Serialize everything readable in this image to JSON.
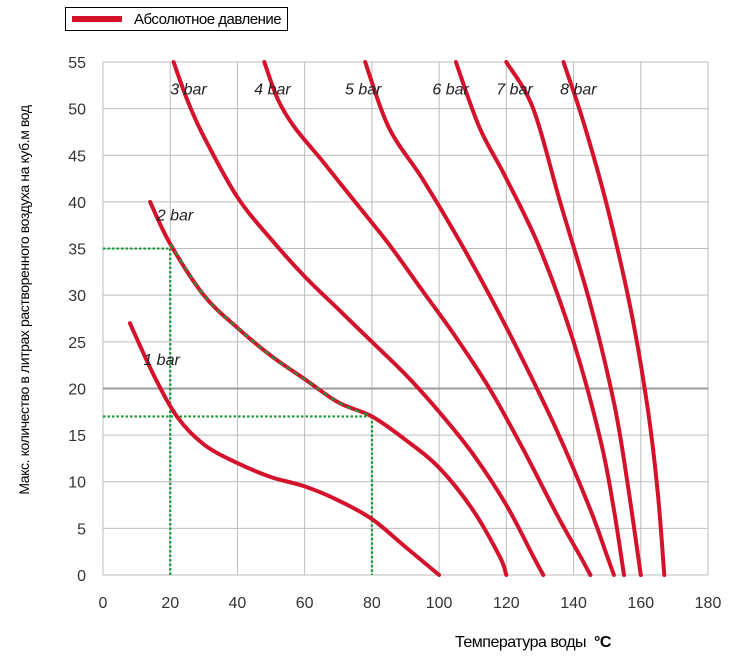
{
  "legend": {
    "label": "Абсолютное  давление",
    "color": "#d5122b"
  },
  "xlabel": {
    "text": "Температура воды",
    "unit": "°C"
  },
  "ylabel": "Макс. количество в литрах растворенного воздуха на куб.м вод",
  "chart_data": {
    "type": "line",
    "xlim": [
      0,
      180
    ],
    "ylim": [
      0,
      55
    ],
    "xticks": [
      "0",
      "20",
      "40",
      "60",
      "80",
      "100",
      "120",
      "140",
      "160",
      "180"
    ],
    "yticks": [
      "0",
      "5",
      "10",
      "15",
      "20",
      "25",
      "30",
      "35",
      "40",
      "45",
      "50",
      "55"
    ],
    "grid": true,
    "highlight_gridline_y": 20,
    "legend_position": "top-left",
    "line_color": "#d5122b",
    "series": [
      {
        "name": "1 bar",
        "x": [
          8,
          15,
          22,
          30,
          40,
          50,
          60,
          70,
          80,
          90,
          100
        ],
        "y": [
          27,
          21.5,
          17,
          14,
          12,
          10.5,
          9.5,
          8,
          6,
          3,
          0
        ]
      },
      {
        "name": "2 bar",
        "x": [
          14,
          20,
          30,
          40,
          50,
          60,
          70,
          80,
          90,
          100,
          110,
          118,
          120
        ],
        "y": [
          40,
          35.5,
          30,
          26.5,
          23.5,
          21,
          18.5,
          17,
          14.5,
          11.5,
          7,
          2,
          0
        ]
      },
      {
        "name": "3 bar",
        "x": [
          21,
          25,
          30,
          40,
          50,
          60,
          70,
          80,
          90,
          100,
          110,
          120,
          128,
          131
        ],
        "y": [
          55,
          51,
          47,
          40.5,
          36,
          32,
          28.5,
          25,
          21.5,
          17.5,
          13,
          7.5,
          2,
          0
        ]
      },
      {
        "name": "4 bar",
        "x": [
          48,
          52,
          57,
          65,
          75,
          85,
          95,
          105,
          115,
          125,
          135,
          142,
          145
        ],
        "y": [
          55,
          51,
          48,
          44.5,
          40,
          35.5,
          30.5,
          25.5,
          20,
          13.5,
          6.5,
          2,
          0
        ]
      },
      {
        "name": "5 bar",
        "x": [
          78,
          85,
          95,
          105,
          115,
          125,
          135,
          145,
          150,
          152
        ],
        "y": [
          55,
          48,
          42.5,
          36.5,
          30,
          23,
          15.5,
          7,
          2,
          0
        ]
      },
      {
        "name": "6 bar",
        "x": [
          105,
          112,
          120,
          130,
          140,
          148,
          152,
          155
        ],
        "y": [
          55,
          48,
          42.5,
          35,
          25,
          14.5,
          7,
          0
        ]
      },
      {
        "name": "7 bar",
        "x": [
          120,
          128,
          136,
          145,
          152,
          156,
          160
        ],
        "y": [
          55,
          50,
          40,
          29,
          18.5,
          10,
          0
        ]
      },
      {
        "name": "8 bar",
        "x": [
          137,
          143,
          150,
          157,
          162,
          165,
          167
        ],
        "y": [
          55,
          48.5,
          39.5,
          28.5,
          18,
          9,
          0
        ]
      }
    ],
    "curve_labels": [
      {
        "text": "1 bar",
        "x": 12,
        "y": 22.5
      },
      {
        "text": "2 bar",
        "x": 16,
        "y": 38
      },
      {
        "text": "3 bar",
        "x": 20,
        "y": 51.5
      },
      {
        "text": "4 bar",
        "x": 45,
        "y": 51.5
      },
      {
        "text": "5 bar",
        "x": 72,
        "y": 51.5
      },
      {
        "text": "6 bar",
        "x": 98,
        "y": 51.5
      },
      {
        "text": "7 bar",
        "x": 117,
        "y": 51.5
      },
      {
        "text": "8 bar",
        "x": 136,
        "y": 51.5
      }
    ],
    "annotations": {
      "color": "#1a9a3a",
      "example_segment": {
        "x": [
          20,
          80
        ],
        "y": [
          35,
          17
        ]
      },
      "guides": [
        {
          "x": [
            0,
            20
          ],
          "y": [
            35,
            35
          ]
        },
        {
          "x": [
            20,
            20
          ],
          "y": [
            35,
            0
          ]
        },
        {
          "x": [
            0,
            80
          ],
          "y": [
            17,
            17
          ]
        },
        {
          "x": [
            80,
            80
          ],
          "y": [
            17,
            0
          ]
        }
      ]
    }
  }
}
